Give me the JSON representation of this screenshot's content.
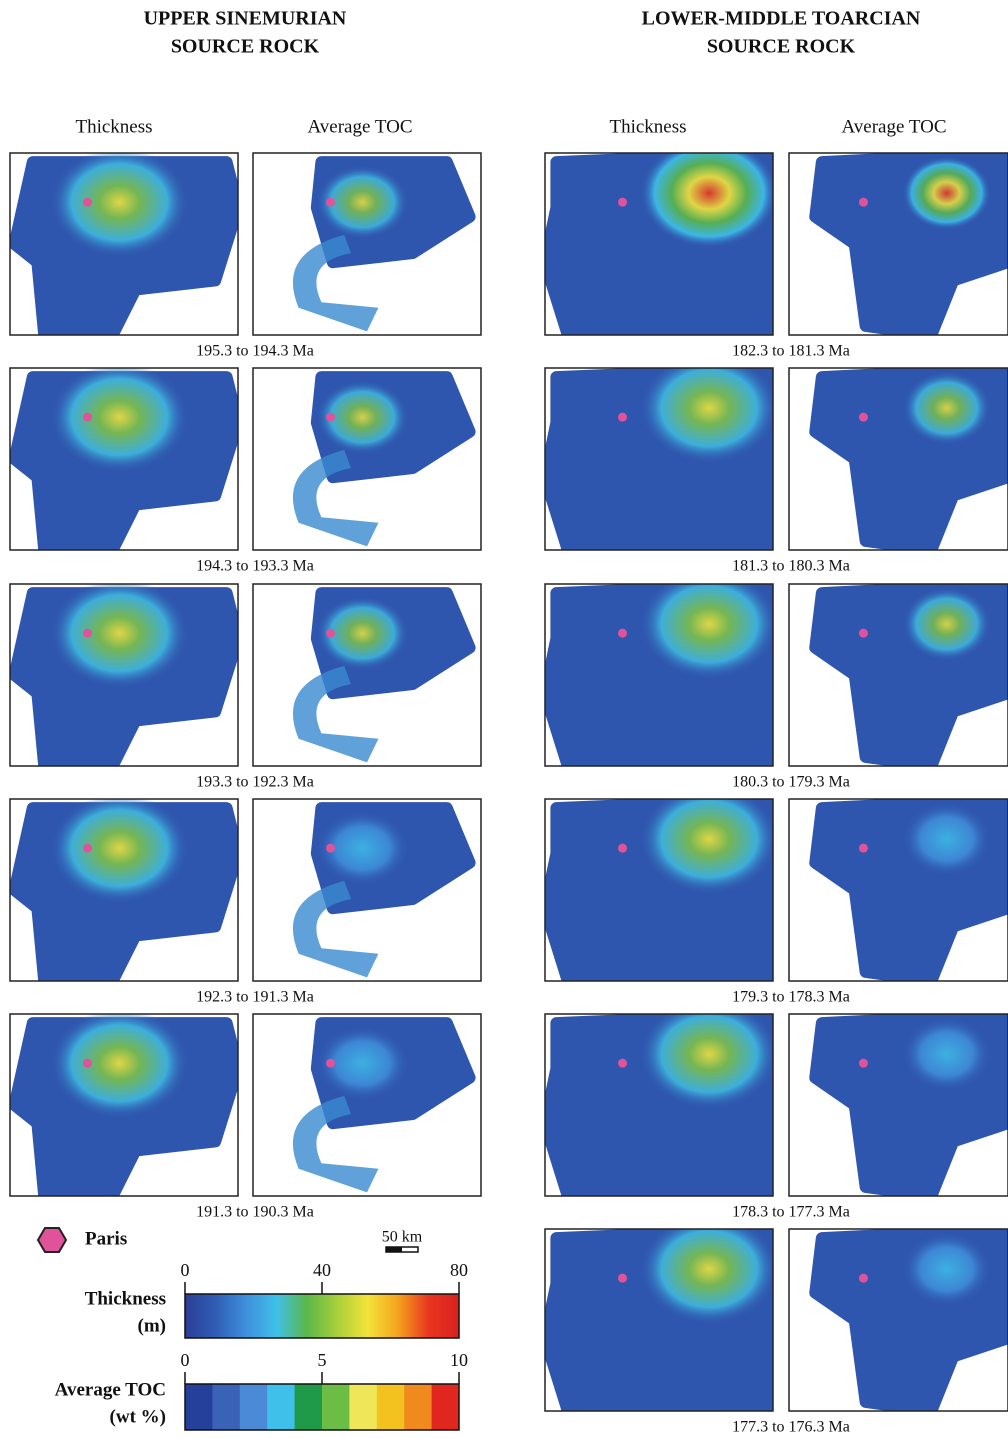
{
  "columns": [
    {
      "title": [
        "UPPER SINEMURIAN",
        "SOURCE ROCK"
      ],
      "panel_headers": [
        "Thickness",
        "Average TOC"
      ],
      "time_labels": [
        "195.3 to 194.3 Ma",
        "194.3 to 193.3 Ma",
        "193.3 to 192.3 Ma",
        "192.3 to 191.3 Ma",
        "191.3 to 190.3 Ma"
      ]
    },
    {
      "title": [
        "LOWER-MIDDLE TOARCIAN",
        "SOURCE ROCK"
      ],
      "panel_headers": [
        "Thickness",
        "Average TOC"
      ],
      "time_labels": [
        "182.3 to 181.3 Ma",
        "181.3 to 180.3 Ma",
        "180.3 to 179.3 Ma",
        "179.3 to 178.3 Ma",
        "178.3 to 177.3 Ma",
        "177.3 to 176.3 Ma"
      ]
    }
  ],
  "legend": {
    "paris_label": "Paris",
    "scale_label": "50 km",
    "colorbars": [
      {
        "label": [
          "Thickness",
          "(m)"
        ],
        "lim": [
          0,
          80
        ],
        "ticks": [
          0,
          40,
          80
        ],
        "style": "continuous",
        "colors": [
          "#2b3f98",
          "#2f5db4",
          "#3f8fdc",
          "#3fc0ea",
          "#5ab84a",
          "#a8cf3a",
          "#f2e43a",
          "#f5a21e",
          "#e8361f",
          "#d8201f"
        ]
      },
      {
        "label": [
          "Average TOC",
          "(wt %)"
        ],
        "lim": [
          0,
          10
        ],
        "ticks": [
          0,
          5,
          10
        ],
        "style": "discrete",
        "colors": [
          "#25409a",
          "#3a63b8",
          "#4a8ad6",
          "#3fc0ea",
          "#1f9a48",
          "#6bbd45",
          "#f0e65a",
          "#f3c21e",
          "#f08a1e",
          "#e0261f"
        ]
      }
    ]
  }
}
